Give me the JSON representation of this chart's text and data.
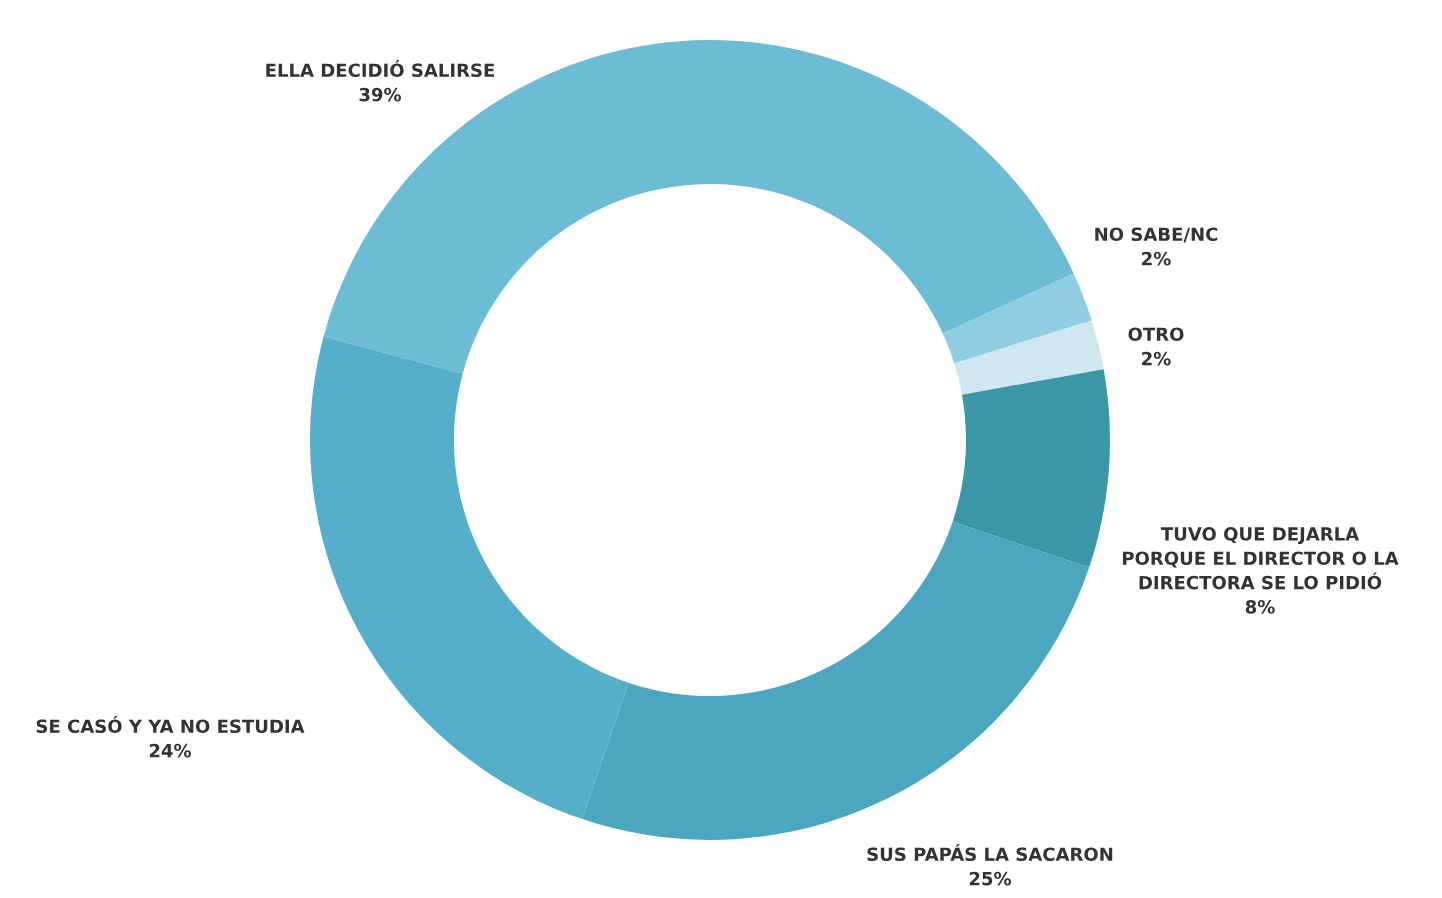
{
  "chart_data": {
    "type": "donut",
    "categories": [
      "ELLA DECIDIÓ SALIRSE",
      "NO SABE/NC",
      "OTRO",
      "TUVO QUE DEJARLA\nPORQUE EL DIRECTOR O LA\nDIRECTORA SE LO PIDIÓ",
      "SUS PAPÁS LA SACARON",
      "SE CASÓ Y YA NO ESTUDIA"
    ],
    "values": [
      39,
      2,
      2,
      8,
      25,
      24
    ],
    "value_labels": [
      "39%",
      "2%",
      "2%",
      "8%",
      "25%",
      "24%"
    ],
    "colors": [
      "#6bbcd4",
      "#8fcde0",
      "#cfe8f0",
      "#3a97a8",
      "#4aa7bf",
      "#55afcb"
    ]
  }
}
